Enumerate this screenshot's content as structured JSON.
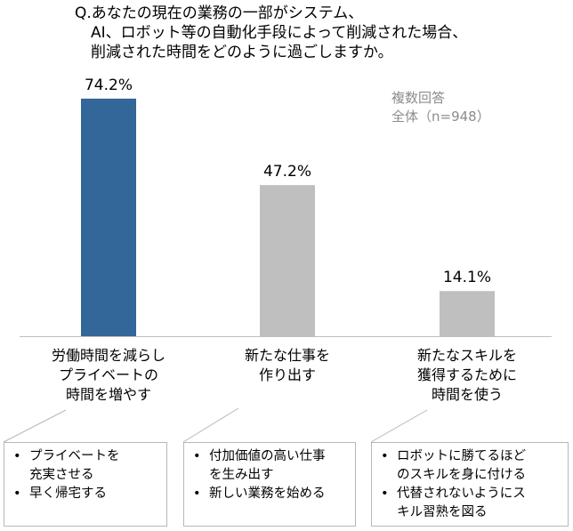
{
  "title_lines": [
    "Q.あなたの現在の業務の一部がシステム、",
    "AI、ロボット等の自動化手段によって削減された場合、",
    "削減された時間をどのように過ごしますか。"
  ],
  "note": {
    "line1": "複数回答",
    "line2": "全体（n=948）"
  },
  "chart_data": {
    "type": "bar",
    "categories": [
      [
        "労働時間を減らし",
        "プライベートの",
        "時間を増やす"
      ],
      [
        "新たな仕事を",
        "作り出す"
      ],
      [
        "新たなスキルを",
        "獲得するために",
        "時間を使う"
      ]
    ],
    "values": [
      74.2,
      47.2,
      14.1
    ],
    "value_labels": [
      "74.2%",
      "47.2%",
      "14.1%"
    ],
    "ylim": [
      0,
      80
    ],
    "colors": [
      "#336699",
      "#bfbfbf",
      "#bfbfbf"
    ],
    "grid": false,
    "legend": "none"
  },
  "callouts": [
    {
      "items": [
        [
          "プライベートを",
          "充実させる"
        ],
        [
          "早く帰宅する"
        ]
      ]
    },
    {
      "items": [
        [
          "付加価値の高い仕事",
          "を生み出す"
        ],
        [
          "新しい業務を始める"
        ]
      ]
    },
    {
      "items": [
        [
          "ロボットに勝てるほど",
          "のスキルを身に付ける"
        ],
        [
          "代替されないようにス",
          "キル習熟を図る"
        ]
      ]
    }
  ]
}
